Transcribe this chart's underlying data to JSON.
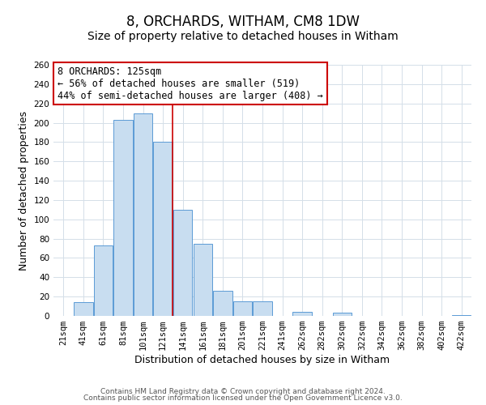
{
  "title": "8, ORCHARDS, WITHAM, CM8 1DW",
  "subtitle": "Size of property relative to detached houses in Witham",
  "xlabel": "Distribution of detached houses by size in Witham",
  "ylabel": "Number of detached properties",
  "bar_color": "#c8ddf0",
  "bar_edge_color": "#5b9bd5",
  "categories": [
    "21sqm",
    "41sqm",
    "61sqm",
    "81sqm",
    "101sqm",
    "121sqm",
    "141sqm",
    "161sqm",
    "181sqm",
    "201sqm",
    "221sqm",
    "241sqm",
    "262sqm",
    "282sqm",
    "302sqm",
    "322sqm",
    "342sqm",
    "362sqm",
    "382sqm",
    "402sqm",
    "422sqm"
  ],
  "values": [
    0,
    14,
    73,
    203,
    210,
    180,
    110,
    75,
    26,
    15,
    15,
    0,
    4,
    0,
    3,
    0,
    0,
    0,
    0,
    0,
    1
  ],
  "ylim": [
    0,
    260
  ],
  "yticks": [
    0,
    20,
    40,
    60,
    80,
    100,
    120,
    140,
    160,
    180,
    200,
    220,
    240,
    260
  ],
  "property_line_index": 5,
  "property_line_color": "#cc0000",
  "annotation_text": "8 ORCHARDS: 125sqm\n← 56% of detached houses are smaller (519)\n44% of semi-detached houses are larger (408) →",
  "annotation_box_color": "#ffffff",
  "annotation_box_edge": "#cc0000",
  "footer1": "Contains HM Land Registry data © Crown copyright and database right 2024.",
  "footer2": "Contains public sector information licensed under the Open Government Licence v3.0.",
  "bg_color": "#ffffff",
  "grid_color": "#d4dfe8",
  "title_fontsize": 12,
  "subtitle_fontsize": 10,
  "axis_label_fontsize": 9,
  "tick_fontsize": 7.5,
  "annotation_fontsize": 8.5,
  "footer_fontsize": 6.5
}
